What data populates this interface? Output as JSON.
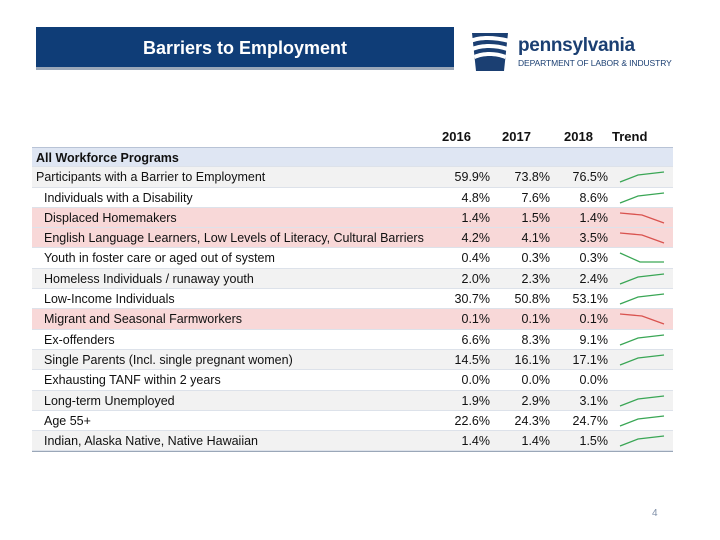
{
  "header": {
    "title": "Barriers to Employment"
  },
  "logo": {
    "name": "pennsylvania",
    "subtitle": "DEPARTMENT OF LABOR & INDUSTRY"
  },
  "table": {
    "columns": [
      "2016",
      "2017",
      "2018",
      "Trend"
    ],
    "section": "All Workforce Programs",
    "rows": [
      {
        "label": "Participants with a Barrier to Employment",
        "v2016": "59.9%",
        "v2017": "73.8%",
        "v2018": "76.5%",
        "trend": "up",
        "style": "alt"
      },
      {
        "label": "Individuals with a Disability",
        "v2016": "4.8%",
        "v2017": "7.6%",
        "v2018": "8.6%",
        "trend": "up",
        "style": "plain"
      },
      {
        "label": "Displaced Homemakers",
        "v2016": "1.4%",
        "v2017": "1.5%",
        "v2018": "1.4%",
        "trend": "down",
        "style": "hl"
      },
      {
        "label": "English Language Learners, Low Levels of Literacy, Cultural Barriers",
        "v2016": "4.2%",
        "v2017": "4.1%",
        "v2018": "3.5%",
        "trend": "down",
        "style": "hl"
      },
      {
        "label": "Youth in foster care or aged out of system",
        "v2016": "0.4%",
        "v2017": "0.3%",
        "v2018": "0.3%",
        "trend": "down-flat",
        "style": "plain"
      },
      {
        "label": "Homeless Individuals / runaway youth",
        "v2016": "2.0%",
        "v2017": "2.3%",
        "v2018": "2.4%",
        "trend": "up",
        "style": "alt"
      },
      {
        "label": "Low-Income Individuals",
        "v2016": "30.7%",
        "v2017": "50.8%",
        "v2018": "53.1%",
        "trend": "up",
        "style": "plain"
      },
      {
        "label": "Migrant and Seasonal Farmworkers",
        "v2016": "0.1%",
        "v2017": "0.1%",
        "v2018": "0.1%",
        "trend": "down",
        "style": "hl"
      },
      {
        "label": "Ex-offenders",
        "v2016": "6.6%",
        "v2017": "8.3%",
        "v2018": "9.1%",
        "trend": "up",
        "style": "plain"
      },
      {
        "label": "Single Parents (Incl. single pregnant women)",
        "v2016": "14.5%",
        "v2017": "16.1%",
        "v2018": "17.1%",
        "trend": "up",
        "style": "alt"
      },
      {
        "label": "Exhausting TANF within 2 years",
        "v2016": "0.0%",
        "v2017": "0.0%",
        "v2018": "0.0%",
        "trend": "none",
        "style": "plain"
      },
      {
        "label": "Long-term Unemployed",
        "v2016": "1.9%",
        "v2017": "2.9%",
        "v2018": "3.1%",
        "trend": "up",
        "style": "alt"
      },
      {
        "label": "Age 55+",
        "v2016": "22.6%",
        "v2017": "24.3%",
        "v2018": "24.7%",
        "trend": "up",
        "style": "plain"
      },
      {
        "label": "Indian, Alaska Native, Native Hawaiian",
        "v2016": "1.4%",
        "v2017": "1.4%",
        "v2018": "1.5%",
        "trend": "up",
        "style": "alt"
      }
    ]
  },
  "footer": {
    "page_number": "4"
  },
  "colors": {
    "title_bar": "#0f3d77",
    "trend_up": "#3aa655",
    "trend_down": "#d9534f",
    "highlight": "#f8d8d8"
  }
}
